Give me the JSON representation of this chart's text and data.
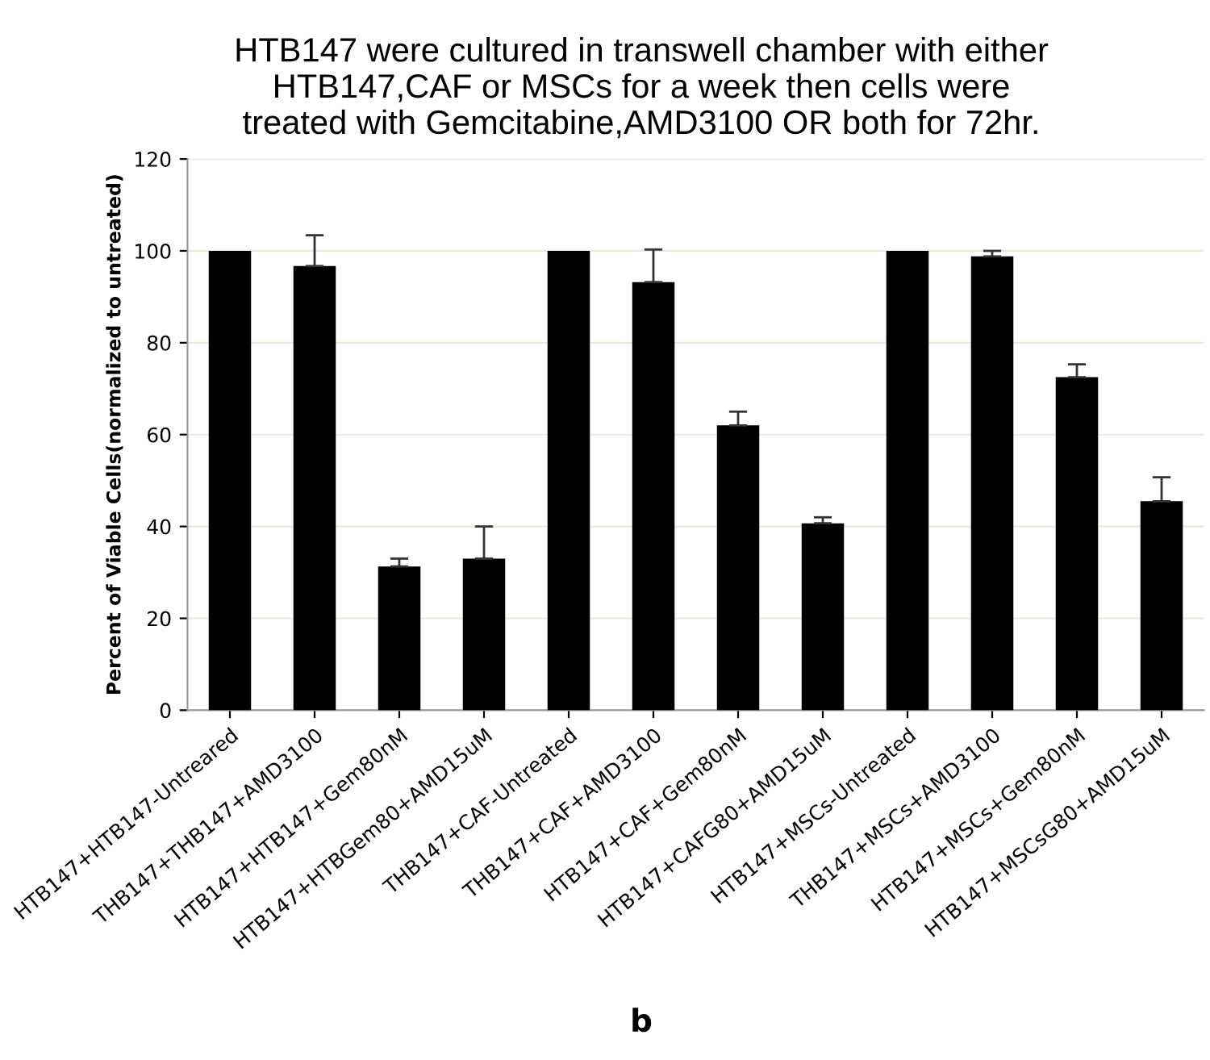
{
  "chart_data": {
    "type": "bar",
    "title": "HTB147 were cultured in transwell chamber with either\nHTB147,CAF or MSCs for a week then cells were\ntreated with Gemcitabine,AMD3100 OR both for 72hr.",
    "ylabel": "Percent of Viable Cells(normalized to untreated)",
    "categories": [
      "HTB147+HTB147-Untreared",
      "THB147+THB147+AMD3100",
      "HTB147+HTB147+Gem80nM",
      "HTB147+HTBGem80+AMD15uM",
      "THB147+CAF-Untreated",
      "THB147+CAF+AMD3100",
      "HTB147+CAF+Gem80nM",
      "HTB147+CAFG80+AMD15uM",
      "HTB147+MSCs-Untreated",
      "THB147+MSCs+AMD3100",
      "HTB147+MSCs+Gem80nM",
      "HTB147+MSCsG80+AMD15uM"
    ],
    "values": [
      100,
      96.7,
      31.3,
      33,
      100,
      93.2,
      62,
      40.7,
      100,
      98.8,
      72.5,
      45.5
    ],
    "errors": [
      null,
      [
        96.7,
        103.4
      ],
      [
        31.3,
        33
      ],
      [
        33,
        40
      ],
      null,
      [
        93.2,
        100.3
      ],
      [
        62,
        65
      ],
      [
        40.7,
        42
      ],
      null,
      [
        98.8,
        100
      ],
      [
        72.5,
        75.3
      ],
      [
        45.5,
        50.7
      ]
    ],
    "color": "#000000",
    "ylim": [
      0,
      120
    ],
    "yticks": [
      0,
      20,
      40,
      60,
      80,
      100,
      120
    ],
    "grid": "y",
    "annotations": [
      "b"
    ]
  }
}
